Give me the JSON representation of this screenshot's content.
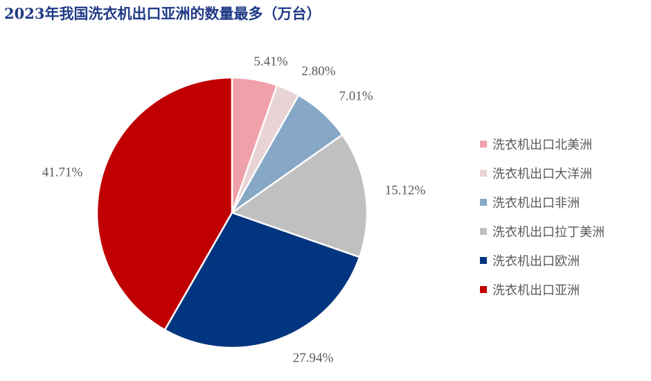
{
  "title": "2023年我国洗衣机出口亚洲的数量最多（万台）",
  "chart_data": {
    "type": "pie",
    "title": "2023年我国洗衣机出口亚洲的数量最多（万台）",
    "labels": [
      "洗衣机出口北美洲",
      "洗衣机出口大洋洲",
      "洗衣机出口非洲",
      "洗衣机出口拉丁美洲",
      "洗衣机出口欧洲",
      "洗衣机出口亚洲"
    ],
    "values": [
      5.41,
      2.8,
      7.01,
      15.12,
      27.94,
      41.71
    ],
    "value_labels": [
      "5.41%",
      "2.80%",
      "7.01%",
      "15.12%",
      "27.94%",
      "41.71%"
    ],
    "colors": [
      "#f0a0aa",
      "#e8d3d5",
      "#86a8c6",
      "#c0c0c0",
      "#02357f",
      "#c00000"
    ],
    "start": "12 o'clock",
    "direction": "clockwise",
    "legend_position": "right"
  }
}
